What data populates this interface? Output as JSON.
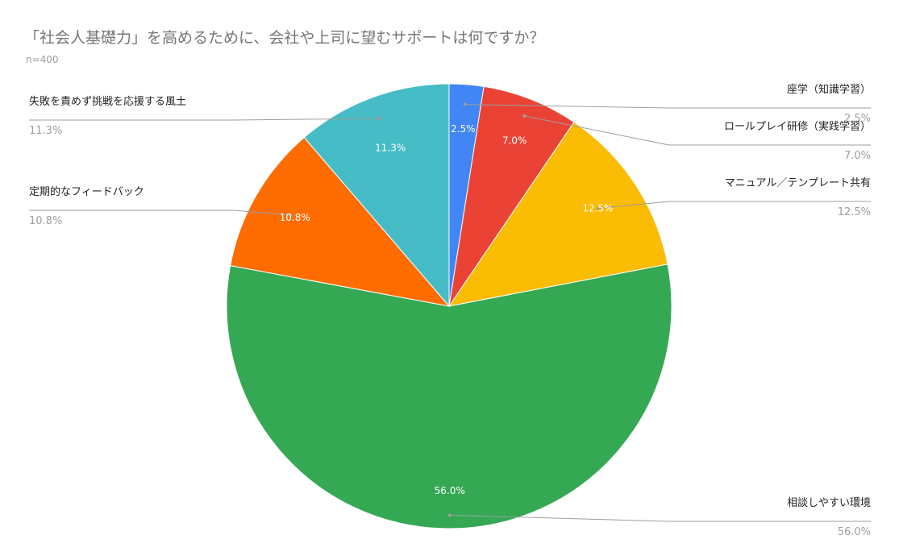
{
  "chart_data": {
    "type": "pie",
    "title": "「社会人基礎力」を高めるために、会社や上司に望むサポートは何ですか？",
    "subtitle": "n=400",
    "start": "top",
    "direction": "clockwise",
    "slices": [
      {
        "label": "座学（知識学習）",
        "value": 2.5,
        "display": "2.5%",
        "color": "#4285f4"
      },
      {
        "label": "ロールプレイ研修（実践学習）",
        "value": 7.0,
        "display": "7.0%",
        "color": "#ea4335"
      },
      {
        "label": "マニュアル／テンプレート共有",
        "value": 12.5,
        "display": "12.5%",
        "color": "#fbbc04"
      },
      {
        "label": "相談しやすい環境",
        "value": 56.0,
        "display": "56.0%",
        "color": "#34a853"
      },
      {
        "label": "定期的なフィードバック",
        "value": 10.8,
        "display": "10.8%",
        "color": "#ff6d01"
      },
      {
        "label": "失敗を責めず挑戦を応援する風土",
        "value": 11.3,
        "display": "11.3%",
        "color": "#46bdc6"
      }
    ]
  }
}
